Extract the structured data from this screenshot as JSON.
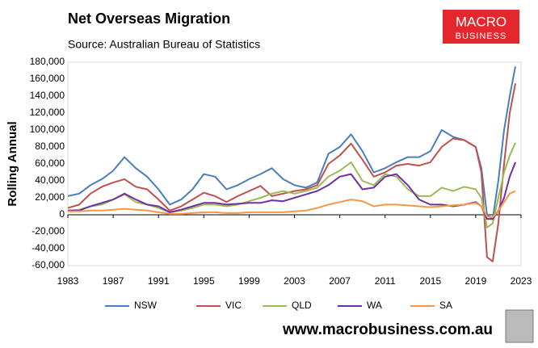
{
  "chart_data": {
    "type": "line",
    "title": "Net Overseas Migration",
    "subtitle": "Source: Australian Bureau of Statistics",
    "ylabel": "Rolling Annual",
    "logo_line1": "MACRO",
    "logo_line2": "BUSINESS",
    "footer": "www.macrobusiness.com.au",
    "grid": false,
    "legend": "bottom",
    "xlim": [
      1983,
      2023
    ],
    "xticks": [
      1983,
      1987,
      1991,
      1995,
      1999,
      2003,
      2007,
      2011,
      2015,
      2019,
      2023
    ],
    "ylim": [
      -60000,
      180000
    ],
    "yticks": [
      {
        "value": -60000,
        "label": "-60,000"
      },
      {
        "value": -40000,
        "label": "-40,000"
      },
      {
        "value": -20000,
        "label": "-20,000"
      },
      0,
      {
        "value": 20000,
        "label": "20,000"
      },
      {
        "value": 40000,
        "label": "40,000"
      },
      {
        "value": 60000,
        "label": "60,000"
      },
      {
        "value": 80000,
        "label": "80,000"
      },
      {
        "value": 100000,
        "label": "100,000"
      },
      {
        "value": 120000,
        "label": "120,000"
      },
      {
        "value": 140000,
        "label": "140,000"
      },
      {
        "value": 160000,
        "label": "160,000"
      },
      {
        "value": 180000,
        "label": "180,000"
      }
    ],
    "x": [
      1983,
      1984,
      1985,
      1986,
      1987,
      1988,
      1989,
      1990,
      1991,
      1992,
      1993,
      1994,
      1995,
      1996,
      1997,
      1998,
      1999,
      2000,
      2001,
      2002,
      2003,
      2004,
      2005,
      2006,
      2007,
      2008,
      2009,
      2010,
      2011,
      2012,
      2013,
      2014,
      2015,
      2016,
      2017,
      2018,
      2019,
      2019.5,
      2020,
      2020.5,
      2021,
      2021.5,
      2022,
      2022.5
    ],
    "series": [
      {
        "name": "NSW",
        "color": "#4a7ebb",
        "values": [
          22000,
          25000,
          35000,
          42000,
          52000,
          68000,
          55000,
          45000,
          30000,
          12000,
          18000,
          30000,
          48000,
          45000,
          30000,
          35000,
          42000,
          48000,
          55000,
          42000,
          35000,
          32000,
          38000,
          72000,
          80000,
          95000,
          75000,
          50000,
          55000,
          62000,
          68000,
          68000,
          75000,
          100000,
          92000,
          88000,
          80000,
          55000,
          0,
          -5000,
          40000,
          100000,
          140000,
          175000
        ]
      },
      {
        "name": "VIC",
        "color": "#c0504d",
        "values": [
          8000,
          12000,
          25000,
          33000,
          38000,
          42000,
          33000,
          30000,
          18000,
          5000,
          10000,
          18000,
          26000,
          22000,
          15000,
          22000,
          28000,
          34000,
          22000,
          25000,
          28000,
          30000,
          35000,
          60000,
          70000,
          84000,
          65000,
          45000,
          50000,
          58000,
          60000,
          58000,
          62000,
          80000,
          90000,
          88000,
          80000,
          50000,
          -50000,
          -55000,
          -10000,
          60000,
          120000,
          155000
        ]
      },
      {
        "name": "QLD",
        "color": "#9bbb59",
        "values": [
          5000,
          6000,
          10000,
          12000,
          18000,
          24000,
          15000,
          12000,
          8000,
          3000,
          5000,
          8000,
          12000,
          12000,
          10000,
          12000,
          16000,
          20000,
          25000,
          28000,
          25000,
          28000,
          32000,
          45000,
          52000,
          62000,
          40000,
          35000,
          48000,
          45000,
          30000,
          22000,
          22000,
          32000,
          28000,
          33000,
          30000,
          20000,
          -15000,
          -10000,
          20000,
          50000,
          70000,
          85000
        ]
      },
      {
        "name": "WA",
        "color": "#7030a0",
        "values": [
          5000,
          5000,
          10000,
          14000,
          18000,
          25000,
          18000,
          12000,
          10000,
          3000,
          6000,
          10000,
          14000,
          14000,
          12000,
          13000,
          14000,
          14000,
          17000,
          16000,
          20000,
          24000,
          28000,
          35000,
          45000,
          48000,
          30000,
          32000,
          45000,
          48000,
          35000,
          18000,
          12000,
          12000,
          10000,
          12000,
          15000,
          10000,
          -5000,
          -5000,
          5000,
          20000,
          45000,
          62000
        ]
      },
      {
        "name": "SA",
        "color": "#f79646",
        "values": [
          4000,
          4000,
          5000,
          5000,
          6000,
          7000,
          6000,
          5000,
          3000,
          1000,
          1000,
          2000,
          3000,
          3000,
          2000,
          2000,
          3000,
          3000,
          3000,
          3000,
          4000,
          5000,
          8000,
          12000,
          15000,
          18000,
          16000,
          10000,
          12000,
          12000,
          11000,
          10000,
          9000,
          10000,
          11000,
          12000,
          14000,
          10000,
          -2000,
          -3000,
          5000,
          15000,
          25000,
          28000
        ]
      }
    ]
  }
}
